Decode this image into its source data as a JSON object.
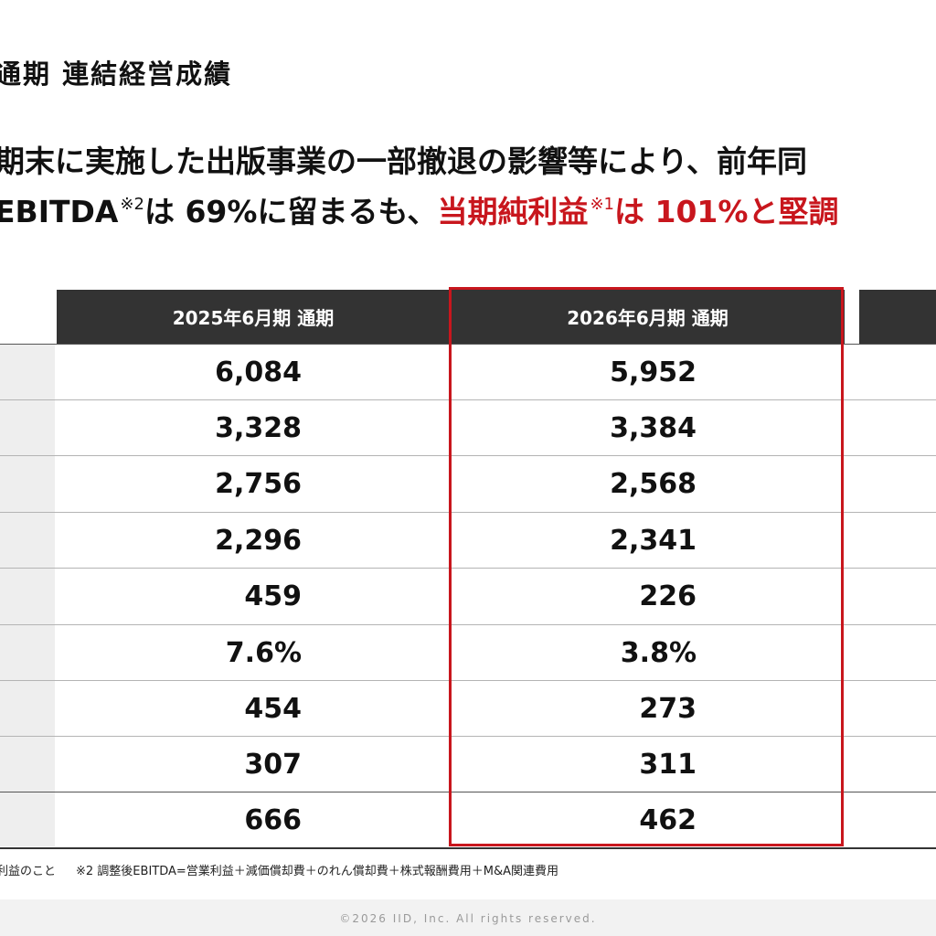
{
  "title": "通期 連結経営成績",
  "headline": {
    "line1": "期末に実施した出版事業の一部撤退の影響等により、前年同",
    "line2_a": "EBITDA",
    "line2_a_sup": "※2",
    "line2_b": "は 69%に留まるも、",
    "line2_hl_a": "当期純利益",
    "line2_hl_sup": "※1",
    "line2_hl_b": "は 101%と堅調"
  },
  "table": {
    "columns": [
      "2025年6月期 通期",
      "2026年6月期 通期",
      ""
    ],
    "rows": [
      {
        "fy2025": "6,084",
        "fy2026": "5,952"
      },
      {
        "fy2025": "3,328",
        "fy2026": "3,384"
      },
      {
        "fy2025": "2,756",
        "fy2026": "2,568"
      },
      {
        "fy2025": "2,296",
        "fy2026": "2,341"
      },
      {
        "fy2025": "459",
        "fy2026": "226"
      },
      {
        "fy2025": "7.6%",
        "fy2026": "3.8%"
      },
      {
        "fy2025": "454",
        "fy2026": "273"
      },
      {
        "fy2025": "307",
        "fy2026": "311"
      },
      {
        "fy2025": "666",
        "fy2026": "462"
      }
    ]
  },
  "footnotes": {
    "note1": "利益のこと",
    "note2": "※2 調整後EBITDA=営業利益＋減価償却費＋のれん償却費＋株式報酬費用＋M&A関連費用"
  },
  "footer": {
    "copyright": "©2026 IID, Inc.  All rights reserved."
  },
  "colors": {
    "accent": "#c8161d",
    "header_bg": "#333333"
  }
}
